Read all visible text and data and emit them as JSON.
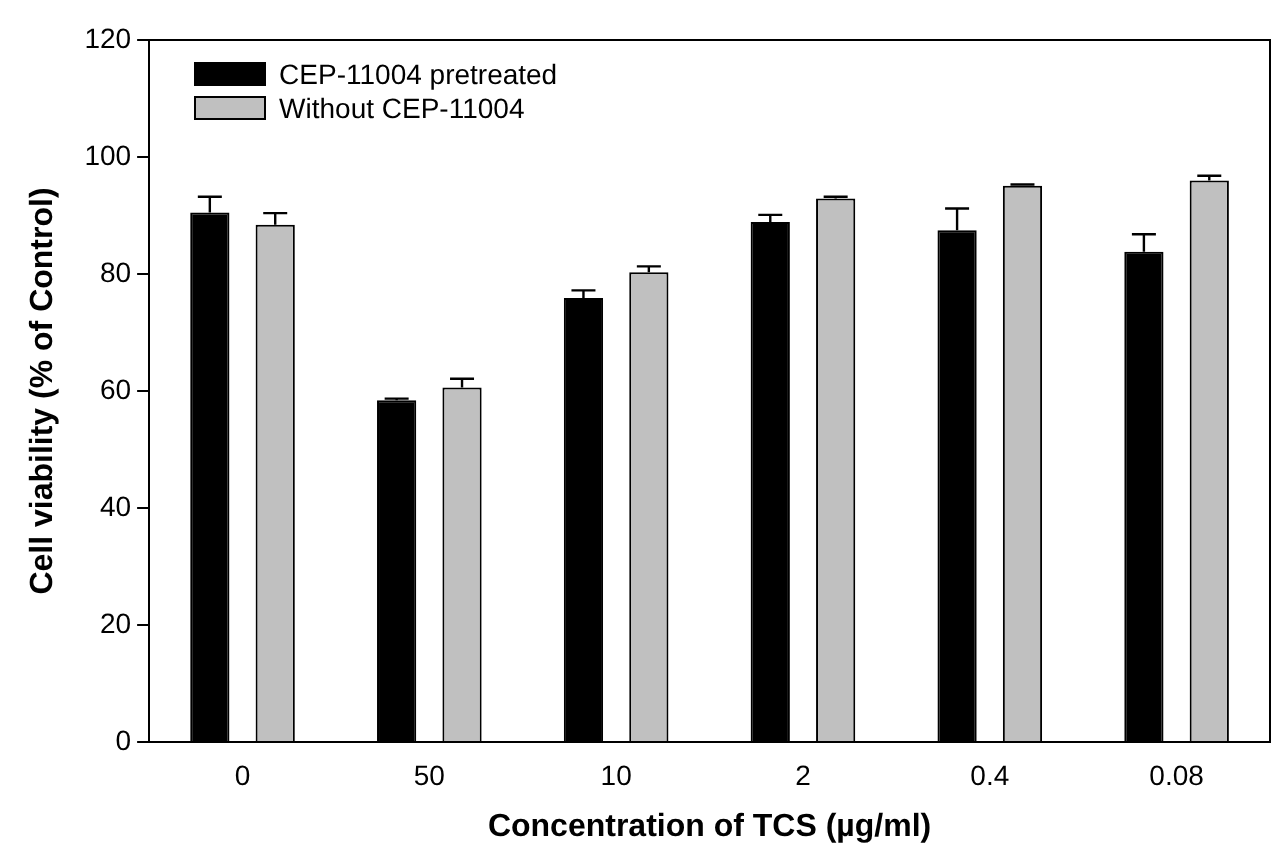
{
  "chart_data": {
    "type": "bar",
    "xlabel": "Concentration of TCS (µg/ml)",
    "ylabel": "Cell viability (% of Control)",
    "categories": [
      "0",
      "50",
      "10",
      "2",
      "0.4",
      "0.08"
    ],
    "series": [
      {
        "name": "CEP-11004 pretreated",
        "color": "#000000",
        "values": [
          90.5,
          58.4,
          75.9,
          88.9,
          87.5,
          83.8
        ],
        "errors": [
          [
            90.5,
            93.2
          ],
          [
            58.4,
            58.7
          ],
          [
            75.9,
            77.2
          ],
          [
            88.9,
            90.1
          ],
          [
            87.5,
            91.2
          ],
          [
            83.8,
            86.8
          ]
        ]
      },
      {
        "name": "Without CEP-11004",
        "color": "#c0c0c0",
        "values": [
          88.4,
          60.6,
          80.3,
          92.9,
          95.1,
          96.0
        ],
        "errors": [
          [
            88.4,
            90.4
          ],
          [
            60.6,
            62.1
          ],
          [
            80.3,
            81.3
          ],
          [
            92.9,
            93.2
          ],
          [
            95.1,
            95.3
          ],
          [
            96.0,
            96.8
          ]
        ]
      }
    ],
    "ylim": [
      0,
      120
    ],
    "yticks": [
      0,
      20,
      40,
      60,
      80,
      100,
      120
    ],
    "grid": false,
    "legend": "top left"
  }
}
